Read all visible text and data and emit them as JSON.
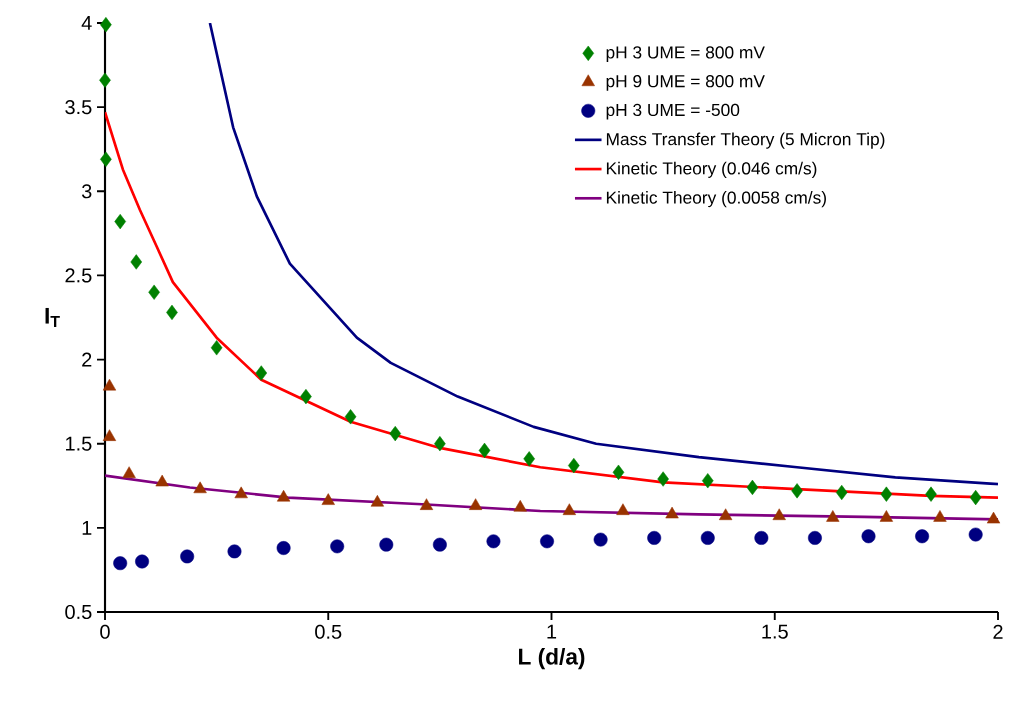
{
  "chart_data": {
    "type": "scatter",
    "xlabel": "L (d/a)",
    "ylabel": "I$_{T}$",
    "xlim": [
      0,
      2
    ],
    "ylim": [
      0.5,
      4
    ],
    "xticks": [
      0,
      0.5,
      1,
      1.5,
      2
    ],
    "yticks": [
      0.5,
      1,
      1.5,
      2,
      2.5,
      3,
      3.5,
      4
    ],
    "grid": false,
    "legend": "top right",
    "series": [
      {
        "name": "pH 3 UME = 800 mV",
        "marker": "diamond",
        "color": "#008000",
        "x": [
          0.002,
          0.0,
          0.002,
          0.034,
          0.07,
          0.11,
          0.15,
          0.25,
          0.35,
          0.45,
          0.55,
          0.65,
          0.75,
          0.85,
          0.95,
          1.05,
          1.15,
          1.25,
          1.35,
          1.45,
          1.55,
          1.65,
          1.75,
          1.85,
          1.95
        ],
        "values": [
          3.99,
          3.66,
          3.19,
          2.82,
          2.58,
          2.4,
          2.28,
          2.07,
          1.92,
          1.78,
          1.66,
          1.56,
          1.5,
          1.46,
          1.41,
          1.37,
          1.33,
          1.29,
          1.28,
          1.24,
          1.22,
          1.21,
          1.2,
          1.2,
          1.18
        ]
      },
      {
        "name": "pH 9 UME = 800 mV",
        "marker": "triangle",
        "color": "#993300",
        "x": [
          0.01,
          0.01,
          0.054,
          0.128,
          0.213,
          0.305,
          0.4,
          0.5,
          0.61,
          0.72,
          0.83,
          0.93,
          1.04,
          1.16,
          1.27,
          1.39,
          1.51,
          1.63,
          1.75,
          1.87,
          1.99
        ],
        "values": [
          1.84,
          1.54,
          1.32,
          1.27,
          1.23,
          1.2,
          1.18,
          1.16,
          1.15,
          1.13,
          1.13,
          1.12,
          1.1,
          1.1,
          1.08,
          1.07,
          1.07,
          1.06,
          1.06,
          1.06,
          1.05
        ]
      },
      {
        "name": "pH 3 UME = -500",
        "marker": "circle",
        "color": "#000080",
        "x": [
          0.034,
          0.083,
          0.184,
          0.29,
          0.4,
          0.52,
          0.63,
          0.75,
          0.87,
          0.99,
          1.11,
          1.23,
          1.35,
          1.47,
          1.59,
          1.71,
          1.83,
          1.95
        ],
        "values": [
          0.79,
          0.8,
          0.83,
          0.86,
          0.88,
          0.89,
          0.9,
          0.9,
          0.92,
          0.92,
          0.93,
          0.94,
          0.94,
          0.94,
          0.94,
          0.95,
          0.95,
          0.96
        ]
      },
      {
        "name": "Mass Transfer Theory (5 Micron Tip)",
        "type": "line",
        "marker": "none",
        "color": "#000080",
        "x": [
          0.235,
          0.287,
          0.34,
          0.414,
          0.564,
          0.64,
          0.79,
          0.96,
          1.1,
          1.33,
          1.55,
          1.77,
          2.0
        ],
        "values": [
          4.0,
          3.38,
          2.97,
          2.57,
          2.13,
          1.98,
          1.78,
          1.6,
          1.5,
          1.42,
          1.36,
          1.3,
          1.26
        ]
      },
      {
        "name": "Kinetic Theory (0.046 cm/s)",
        "type": "line",
        "marker": "none",
        "color": "#ff0000",
        "x": [
          0.0,
          0.04,
          0.078,
          0.116,
          0.152,
          0.25,
          0.35,
          0.55,
          0.75,
          0.975,
          1.25,
          1.55,
          1.85,
          2.0
        ],
        "values": [
          3.47,
          3.13,
          2.89,
          2.67,
          2.46,
          2.13,
          1.88,
          1.63,
          1.475,
          1.36,
          1.27,
          1.23,
          1.19,
          1.18
        ]
      },
      {
        "name": "Kinetic Theory (0.0058 cm/s)",
        "type": "line",
        "marker": "none",
        "color": "#800080",
        "x": [
          0.0,
          0.19,
          0.41,
          0.71,
          0.975,
          1.33,
          1.7,
          2.0
        ],
        "values": [
          1.31,
          1.24,
          1.18,
          1.14,
          1.1,
          1.08,
          1.065,
          1.05
        ]
      }
    ]
  }
}
